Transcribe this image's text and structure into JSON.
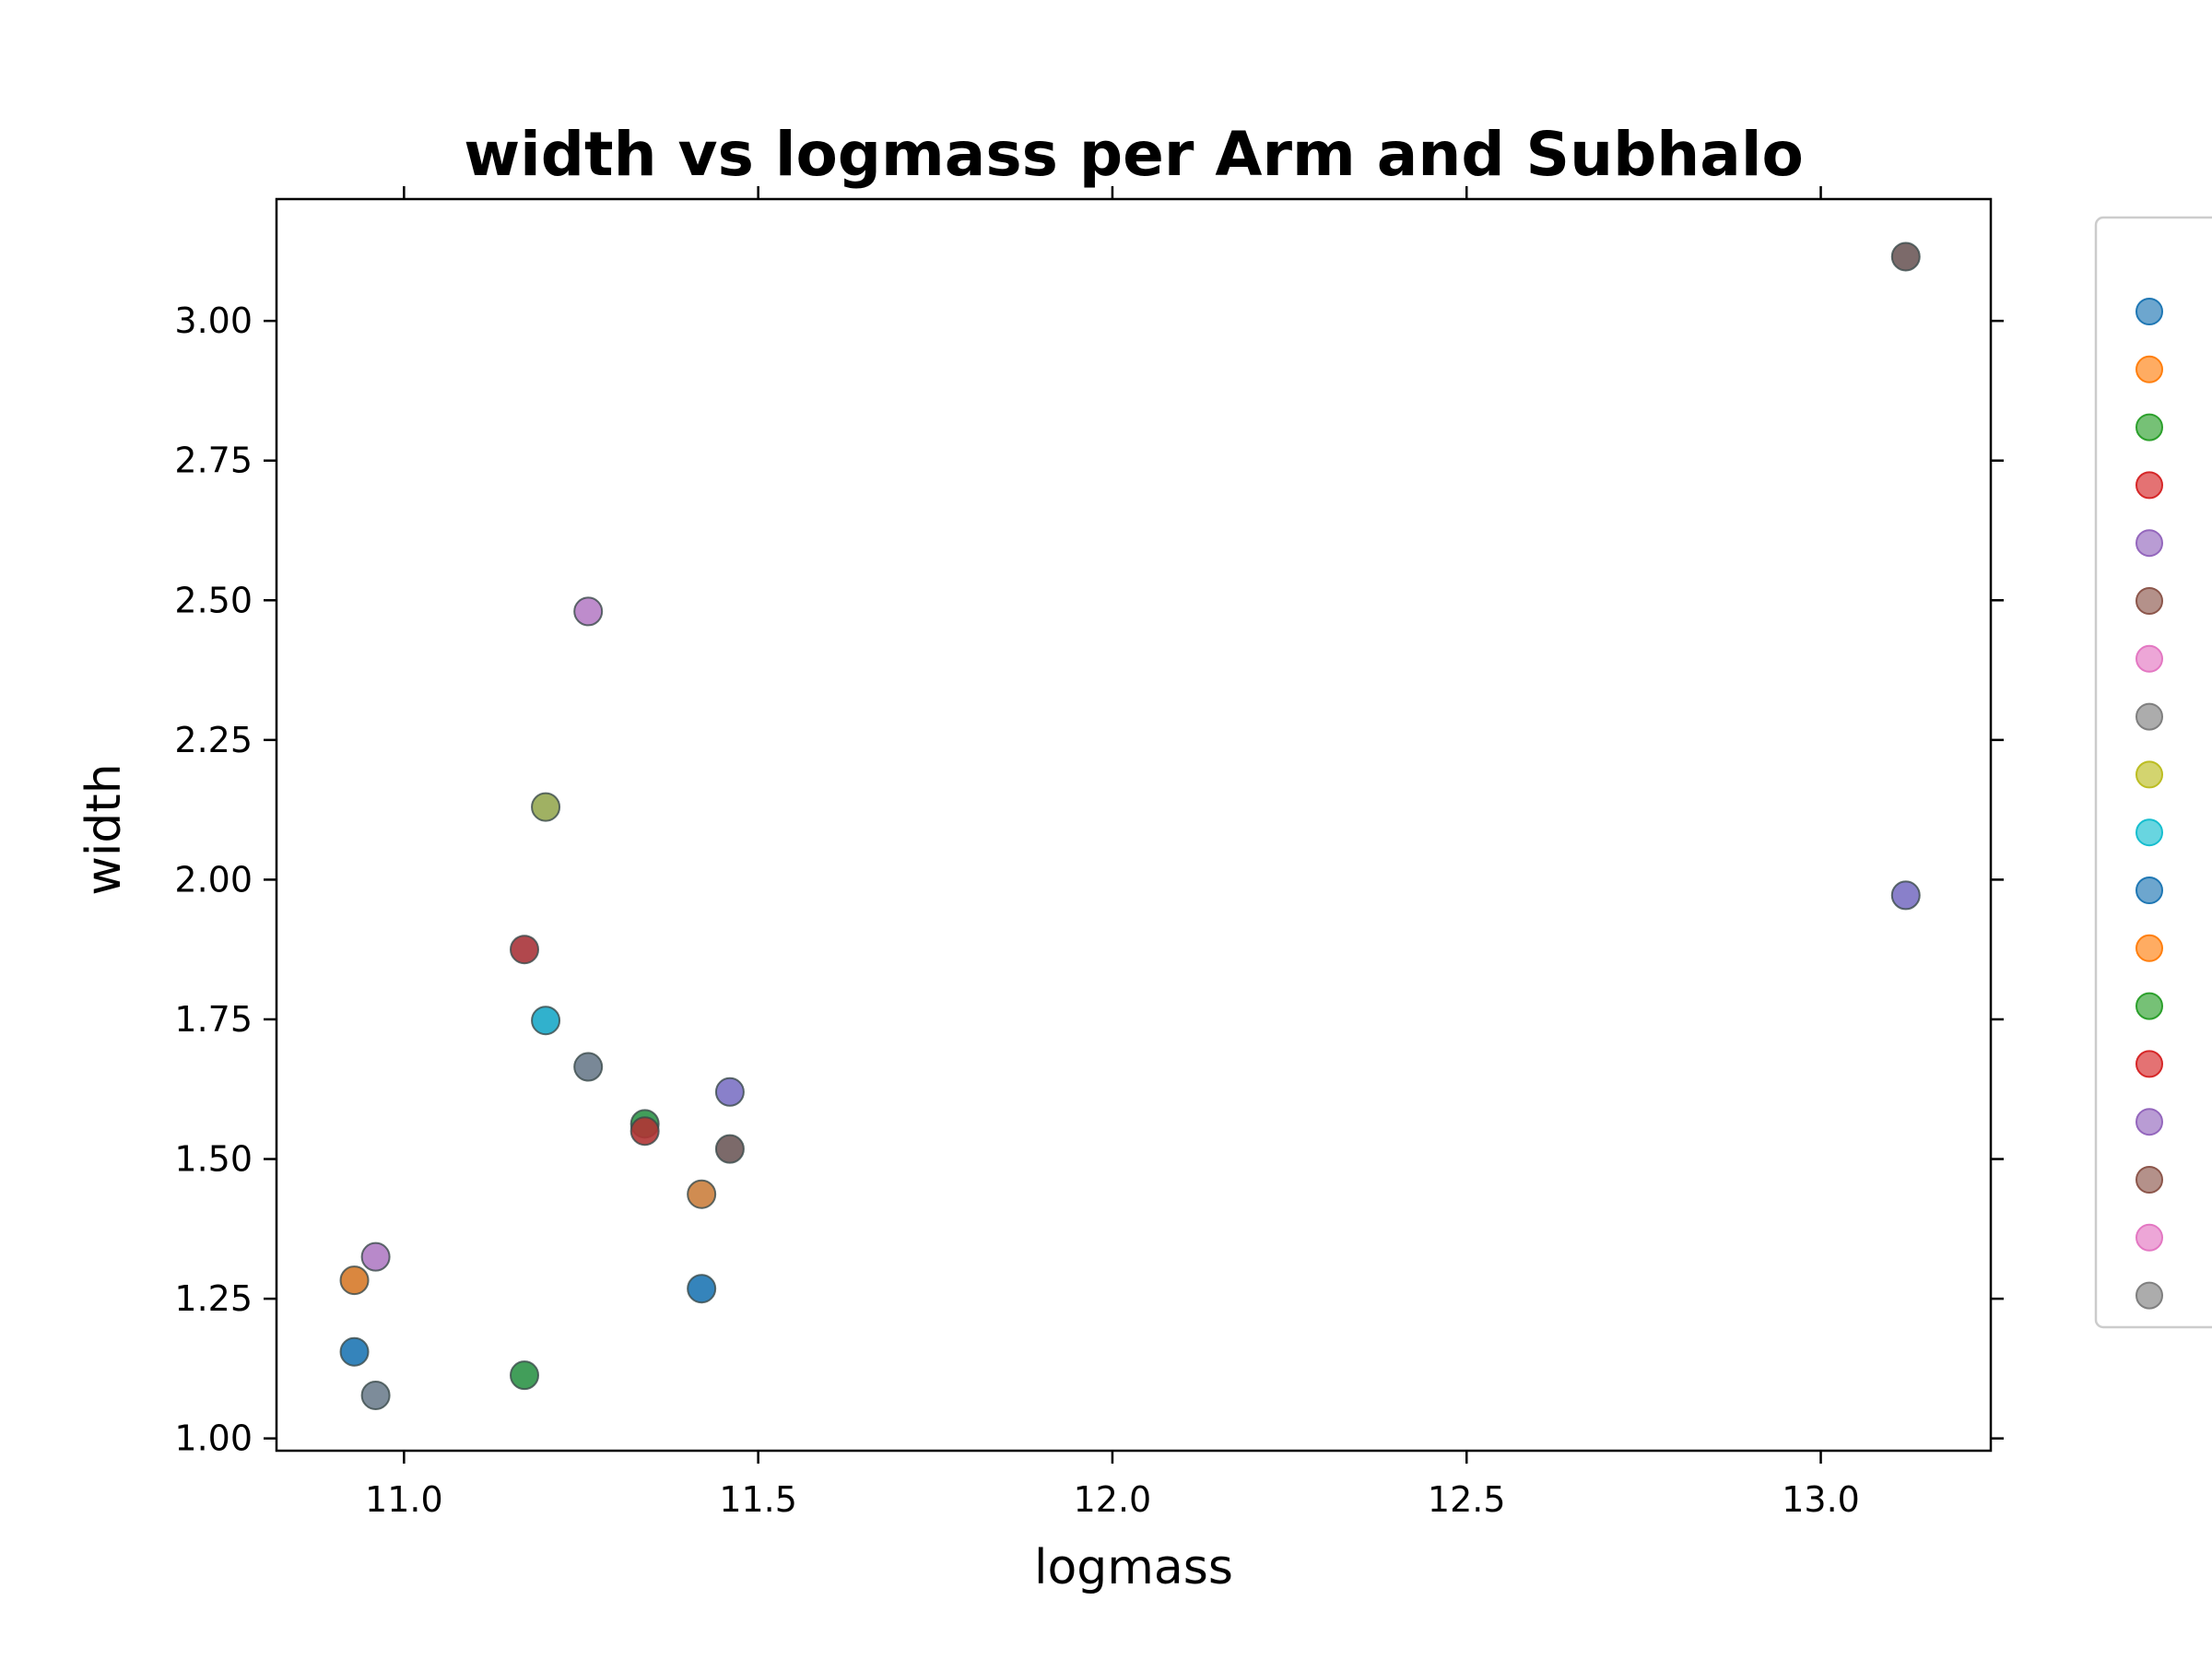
{
  "chart_data": {
    "type": "scatter",
    "title": "width vs logmass per Arm and Subhalo",
    "xlabel": "logmass",
    "ylabel": "width",
    "xlim": [
      10.82,
      13.24
    ],
    "ylim": [
      0.978,
      3.218
    ],
    "xticks": [
      "11.0",
      "11.5",
      "12.0",
      "12.5",
      "13.0"
    ],
    "yticks": [
      "1.00",
      "1.25",
      "1.50",
      "1.75",
      "2.00",
      "2.25",
      "2.50",
      "2.75",
      "3.00"
    ],
    "grid": false,
    "legend": {
      "placement": "right, outside plot",
      "labels_visible": false,
      "colors": [
        "#1f77b4",
        "#ff7f0e",
        "#2ca02c",
        "#d62728",
        "#9467bd",
        "#8c564b",
        "#e377c2",
        "#7f7f7f",
        "#bcbd22",
        "#17becf",
        "#1f77b4",
        "#ff7f0e",
        "#2ca02c",
        "#d62728",
        "#9467bd",
        "#8c564b",
        "#e377c2",
        "#7f7f7f"
      ]
    },
    "points": [
      {
        "x": 10.93,
        "y": 1.155,
        "color": "#1f77b4"
      },
      {
        "x": 10.93,
        "y": 1.283,
        "color": "#d67a2a"
      },
      {
        "x": 10.96,
        "y": 1.325,
        "color": "#b07cc4"
      },
      {
        "x": 10.96,
        "y": 1.077,
        "color": "#6f7f8f"
      },
      {
        "x": 11.17,
        "y": 1.875,
        "color": "#a8343a"
      },
      {
        "x": 11.17,
        "y": 1.113,
        "color": "#2e9448"
      },
      {
        "x": 11.2,
        "y": 2.13,
        "color": "#96a852"
      },
      {
        "x": 11.2,
        "y": 1.748,
        "color": "#1ba8c8"
      },
      {
        "x": 11.26,
        "y": 2.48,
        "color": "#b780c6"
      },
      {
        "x": 11.26,
        "y": 1.665,
        "color": "#6a7b8c"
      },
      {
        "x": 11.34,
        "y": 1.563,
        "color": "#2e9448"
      },
      {
        "x": 11.34,
        "y": 1.55,
        "color": "#b03434"
      },
      {
        "x": 11.42,
        "y": 1.437,
        "color": "#cb7f3e"
      },
      {
        "x": 11.42,
        "y": 1.268,
        "color": "#1f77b4"
      },
      {
        "x": 11.46,
        "y": 1.62,
        "color": "#7c72c4"
      },
      {
        "x": 11.46,
        "y": 1.518,
        "color": "#6e5a5a"
      },
      {
        "x": 13.12,
        "y": 3.115,
        "color": "#6e5a5a"
      },
      {
        "x": 13.12,
        "y": 1.972,
        "color": "#7c72c4"
      }
    ]
  }
}
